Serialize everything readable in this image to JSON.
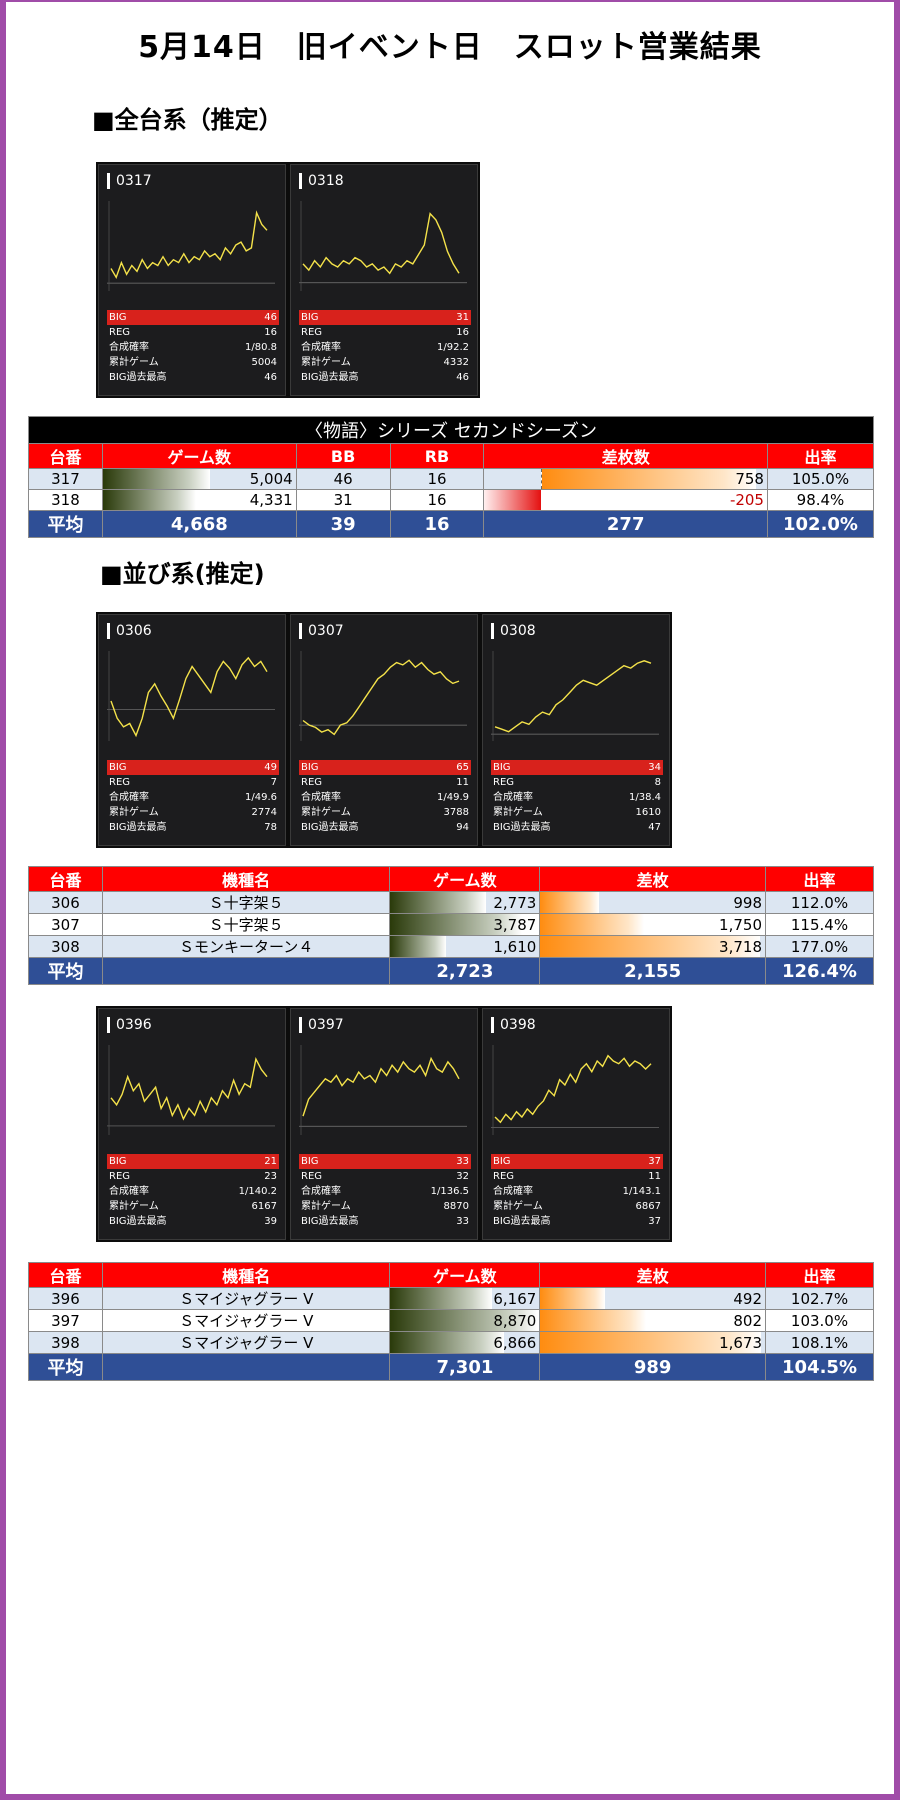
{
  "page_title": "5月14日　旧イベント日　スロット営業結果",
  "sections": [
    {
      "title": "■全台系（推定）"
    },
    {
      "title": "■並び系(推定)"
    }
  ],
  "stat_labels": {
    "big": "BIG",
    "reg": "REG",
    "prob": "合成確率",
    "games": "累計ゲーム",
    "max": "BIG過去最高"
  },
  "cards": {
    "c317": {
      "id": "0317",
      "big": "46",
      "reg": "16",
      "prob": "1/80.8",
      "games": "5004",
      "max": "46",
      "line": [
        5,
        2,
        7,
        3,
        6,
        4,
        8,
        5,
        7,
        6,
        9,
        6,
        8,
        7,
        10,
        7,
        9,
        8,
        11,
        9,
        10,
        8,
        12,
        10,
        13,
        14,
        11,
        12,
        24,
        20,
        18
      ]
    },
    "c318": {
      "id": "0318",
      "big": "31",
      "reg": "16",
      "prob": "1/92.2",
      "games": "4332",
      "max": "46",
      "line": [
        6,
        4,
        7,
        5,
        8,
        6,
        5,
        7,
        6,
        8,
        7,
        5,
        6,
        4,
        5,
        3,
        6,
        5,
        7,
        6,
        9,
        12,
        22,
        20,
        16,
        10,
        6,
        3
      ]
    },
    "c306": {
      "id": "0306",
      "big": "49",
      "reg": "7",
      "prob": "1/49.6",
      "games": "2774",
      "max": "78",
      "line": [
        5,
        -5,
        -10,
        -8,
        -15,
        -5,
        10,
        15,
        8,
        2,
        -5,
        6,
        18,
        25,
        20,
        15,
        10,
        22,
        28,
        24,
        18,
        26,
        30,
        25,
        28,
        22
      ]
    },
    "c307": {
      "id": "0307",
      "big": "65",
      "reg": "11",
      "prob": "1/49.9",
      "games": "3788",
      "max": "94",
      "line": [
        2,
        0,
        -1,
        -3,
        -2,
        -4,
        0,
        1,
        4,
        8,
        12,
        16,
        20,
        22,
        25,
        27,
        26,
        28,
        25,
        27,
        24,
        22,
        23,
        20,
        18,
        19
      ]
    },
    "c308": {
      "id": "0308",
      "big": "34",
      "reg": "8",
      "prob": "1/38.4",
      "games": "1610",
      "max": "47",
      "line": [
        3,
        2,
        1,
        3,
        5,
        4,
        7,
        9,
        8,
        12,
        14,
        17,
        20,
        22,
        21,
        20,
        22,
        24,
        26,
        28,
        27,
        29,
        30,
        29
      ]
    },
    "c396": {
      "id": "0396",
      "big": "21",
      "reg": "23",
      "prob": "1/140.2",
      "games": "6167",
      "max": "39",
      "line": [
        8,
        6,
        9,
        14,
        10,
        12,
        7,
        9,
        11,
        5,
        8,
        3,
        6,
        2,
        5,
        3,
        7,
        4,
        8,
        6,
        10,
        8,
        13,
        9,
        12,
        11,
        19,
        16,
        14
      ]
    },
    "c397": {
      "id": "0397",
      "big": "33",
      "reg": "32",
      "prob": "1/136.5",
      "games": "8870",
      "max": "33",
      "line": [
        3,
        8,
        10,
        12,
        14,
        13,
        15,
        12,
        14,
        13,
        16,
        14,
        15,
        13,
        17,
        15,
        18,
        16,
        19,
        17,
        16,
        18,
        15,
        20,
        17,
        16,
        19,
        17,
        14
      ]
    },
    "c398": {
      "id": "0398",
      "big": "37",
      "reg": "11",
      "prob": "1/143.1",
      "games": "6867",
      "max": "37",
      "line": [
        4,
        2,
        5,
        3,
        6,
        4,
        7,
        5,
        8,
        10,
        14,
        12,
        18,
        16,
        20,
        17,
        22,
        24,
        21,
        25,
        23,
        27,
        25,
        24,
        26,
        23,
        25,
        24,
        22,
        24
      ]
    }
  },
  "table1": {
    "caption": "〈物語〉シリーズ セカンドシーズン",
    "headers": [
      "台番",
      "ゲーム数",
      "BB",
      "RB",
      "差枚数",
      "出率"
    ],
    "rows": [
      {
        "no": "317",
        "games": "5,004",
        "bb": "46",
        "rb": "16",
        "diff": "758",
        "rate": "105.0%",
        "games_v": 5004,
        "diff_v": 758
      },
      {
        "no": "318",
        "games": "4,331",
        "bb": "31",
        "rb": "16",
        "diff": "-205",
        "rate": "98.4%",
        "games_v": 4331,
        "diff_v": -205
      }
    ],
    "avg": {
      "label": "平均",
      "games": "4,668",
      "bb": "39",
      "rb": "16",
      "diff": "277",
      "rate": "102.0%"
    }
  },
  "table2": {
    "headers": [
      "台番",
      "機種名",
      "ゲーム数",
      "差枚",
      "出率"
    ],
    "rows": [
      {
        "no": "306",
        "model": "Ｓ十字架５",
        "games": "2,773",
        "diff": "998",
        "rate": "112.0%",
        "games_v": 2773,
        "diff_v": 998
      },
      {
        "no": "307",
        "model": "Ｓ十字架５",
        "games": "3,787",
        "diff": "1,750",
        "rate": "115.4%",
        "games_v": 3787,
        "diff_v": 1750
      },
      {
        "no": "308",
        "model": "Ｓモンキーターン４",
        "games": "1,610",
        "diff": "3,718",
        "rate": "177.0%",
        "games_v": 1610,
        "diff_v": 3718
      }
    ],
    "avg": {
      "label": "平均",
      "games": "2,723",
      "diff": "2,155",
      "rate": "126.4%"
    }
  },
  "table3": {
    "headers": [
      "台番",
      "機種名",
      "ゲーム数",
      "差枚",
      "出率"
    ],
    "rows": [
      {
        "no": "396",
        "model": "Ｓマイジャグラー V",
        "games": "6,167",
        "diff": "492",
        "rate": "102.7%",
        "games_v": 6167,
        "diff_v": 492
      },
      {
        "no": "397",
        "model": "Ｓマイジャグラー V",
        "games": "8,870",
        "diff": "802",
        "rate": "103.0%",
        "games_v": 8870,
        "diff_v": 802
      },
      {
        "no": "398",
        "model": "Ｓマイジャグラー V",
        "games": "6,866",
        "diff": "1,673",
        "rate": "108.1%",
        "games_v": 6866,
        "diff_v": 1673
      }
    ],
    "avg": {
      "label": "平均",
      "games": "7,301",
      "diff": "989",
      "rate": "104.5%"
    }
  },
  "colors": {
    "border": "#a04ca8",
    "header_red": "#ff0000",
    "avg_blue": "#2f4f96",
    "big_red": "#d8221c",
    "line_yellow": "#f4e24a"
  }
}
